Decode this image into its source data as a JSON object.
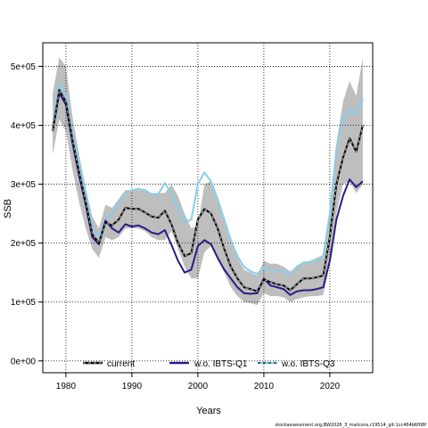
{
  "chart_data": {
    "type": "line",
    "xlabel": "Years",
    "ylabel": "SSB",
    "xlim": [
      1976.5,
      2026.5
    ],
    "ylim": [
      -20000,
      540000
    ],
    "x_ticks": [
      1980,
      1990,
      2000,
      2010,
      2020
    ],
    "y_ticks": [
      0,
      100000,
      200000,
      300000,
      400000,
      500000
    ],
    "y_tick_labels": [
      "0e+00",
      "1e+05",
      "2e+05",
      "3e+05",
      "4e+05",
      "5e+05"
    ],
    "grid": true,
    "grid_style": "dotted",
    "legend_position": "bottom",
    "colors": {
      "band": "#bebebe",
      "current": "#000000",
      "w_o_ibts_q1": "#2b1a86",
      "w_o_ibts_q3": "#87ceeb"
    },
    "x": [
      1978,
      1979,
      1980,
      1981,
      1982,
      1983,
      1984,
      1985,
      1986,
      1987,
      1988,
      1989,
      1990,
      1991,
      1992,
      1993,
      1994,
      1995,
      1996,
      1997,
      1998,
      1999,
      2000,
      2001,
      2002,
      2003,
      2004,
      2005,
      2006,
      2007,
      2008,
      2009,
      2010,
      2011,
      2012,
      2013,
      2014,
      2015,
      2016,
      2017,
      2018,
      2019,
      2020,
      2021,
      2022,
      2023,
      2024,
      2025
    ],
    "band": {
      "upper": [
        455000,
        515000,
        500000,
        415000,
        350000,
        295000,
        245000,
        225000,
        265000,
        260000,
        275000,
        290000,
        290000,
        290000,
        290000,
        285000,
        285000,
        285000,
        300000,
        280000,
        250000,
        225000,
        230000,
        300000,
        305000,
        275000,
        235000,
        200000,
        175000,
        155000,
        150000,
        145000,
        170000,
        165000,
        165000,
        160000,
        152000,
        160000,
        165000,
        170000,
        175000,
        180000,
        250000,
        370000,
        440000,
        475000,
        450000,
        515000
      ],
      "lower": [
        350000,
        410000,
        390000,
        325000,
        270000,
        225000,
        190000,
        175000,
        210000,
        205000,
        210000,
        225000,
        225000,
        225000,
        220000,
        210000,
        205000,
        205000,
        220000,
        190000,
        160000,
        140000,
        140000,
        185000,
        195000,
        175000,
        150000,
        125000,
        110000,
        100000,
        98000,
        95000,
        115000,
        110000,
        110000,
        108000,
        100000,
        105000,
        108000,
        110000,
        110000,
        112000,
        165000,
        250000,
        300000,
        305000,
        285000,
        300000
      ]
    },
    "series": [
      {
        "name": "current",
        "values": [
          390000,
          460000,
          440000,
          375000,
          320000,
          270000,
          215000,
          200000,
          235000,
          230000,
          240000,
          260000,
          258000,
          258000,
          252000,
          245000,
          243000,
          255000,
          232000,
          200000,
          178000,
          183000,
          240000,
          258000,
          250000,
          225000,
          190000,
          160000,
          140000,
          125000,
          122000,
          118000,
          138000,
          134000,
          130000,
          128000,
          120000,
          130000,
          140000,
          140000,
          142000,
          145000,
          210000,
          300000,
          345000,
          378000,
          355000,
          400000
        ]
      },
      {
        "name": "w.o. IBTS-Q1",
        "values": [
          390000,
          455000,
          435000,
          370000,
          315000,
          265000,
          210000,
          198000,
          238000,
          225000,
          218000,
          232000,
          228000,
          230000,
          225000,
          218000,
          215000,
          222000,
          197000,
          170000,
          150000,
          155000,
          195000,
          205000,
          198000,
          175000,
          155000,
          140000,
          125000,
          115000,
          114000,
          115000,
          140000,
          128000,
          125000,
          122000,
          112000,
          118000,
          120000,
          120000,
          122000,
          125000,
          170000,
          240000,
          280000,
          308000,
          295000,
          305000
        ]
      },
      {
        "name": "w.o. IBTS-Q3",
        "values": [
          400000,
          470000,
          450000,
          385000,
          335000,
          285000,
          228000,
          210000,
          240000,
          250000,
          268000,
          285000,
          290000,
          292000,
          290000,
          283000,
          283000,
          302000,
          283000,
          258000,
          235000,
          240000,
          300000,
          320000,
          305000,
          275000,
          240000,
          205000,
          178000,
          160000,
          152000,
          148000,
          158000,
          155000,
          153000,
          152000,
          148000,
          160000,
          167000,
          168000,
          170000,
          178000,
          250000,
          360000,
          410000,
          425000,
          420000,
          445000
        ]
      }
    ]
  },
  "watermark": "stockassessment.org,BW2026_3_matcons,r19514_git:1cc464b6f08f"
}
